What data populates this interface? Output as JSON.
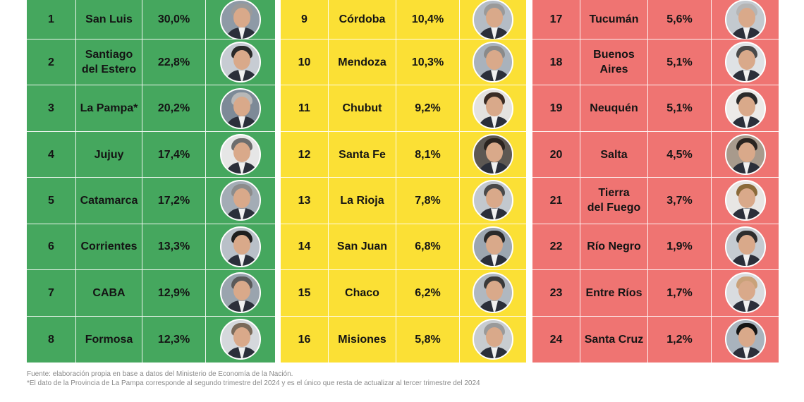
{
  "columns": [
    {
      "color": "#45a75e",
      "rows": [
        {
          "rank": "1",
          "province": "San Luis",
          "value": "30,0%"
        },
        {
          "rank": "2",
          "province": "Santiago\ndel Estero",
          "value": "22,8%"
        },
        {
          "rank": "3",
          "province": "La Pampa*",
          "value": "20,2%"
        },
        {
          "rank": "4",
          "province": "Jujuy",
          "value": "17,4%"
        },
        {
          "rank": "5",
          "province": "Catamarca",
          "value": "17,2%"
        },
        {
          "rank": "6",
          "province": "Corrientes",
          "value": "13,3%"
        },
        {
          "rank": "7",
          "province": "CABA",
          "value": "12,9%"
        },
        {
          "rank": "8",
          "province": "Formosa",
          "value": "12,3%"
        }
      ]
    },
    {
      "color": "#fbe035",
      "rows": [
        {
          "rank": "9",
          "province": "Córdoba",
          "value": "10,4%"
        },
        {
          "rank": "10",
          "province": "Mendoza",
          "value": "10,3%"
        },
        {
          "rank": "11",
          "province": "Chubut",
          "value": "9,2%"
        },
        {
          "rank": "12",
          "province": "Santa Fe",
          "value": "8,1%"
        },
        {
          "rank": "13",
          "province": "La Rioja",
          "value": "7,8%"
        },
        {
          "rank": "14",
          "province": "San Juan",
          "value": "6,8%"
        },
        {
          "rank": "15",
          "province": "Chaco",
          "value": "6,2%"
        },
        {
          "rank": "16",
          "province": "Misiones",
          "value": "5,8%"
        }
      ]
    },
    {
      "color": "#ef7472",
      "rows": [
        {
          "rank": "17",
          "province": "Tucumán",
          "value": "5,6%"
        },
        {
          "rank": "18",
          "province": "Buenos Aires",
          "value": "5,1%"
        },
        {
          "rank": "19",
          "province": "Neuquén",
          "value": "5,1%"
        },
        {
          "rank": "20",
          "province": "Salta",
          "value": "4,5%"
        },
        {
          "rank": "21",
          "province": "Tierra\ndel Fuego",
          "value": "3,7%"
        },
        {
          "rank": "22",
          "province": "Río Negro",
          "value": "1,9%"
        },
        {
          "rank": "23",
          "province": "Entre Ríos",
          "value": "1,7%"
        },
        {
          "rank": "24",
          "province": "Santa Cruz",
          "value": "1,2%"
        }
      ]
    }
  ],
  "footnotes": {
    "source": "Fuente: elaboración propia en base a datos del Ministerio de Economía de la Nación.",
    "note": "*El dato de la Provincia de La Pampa corresponde al segundo trimestre del 2024 y es el único que resta de actualizar al tercer trimestre del 2024"
  }
}
